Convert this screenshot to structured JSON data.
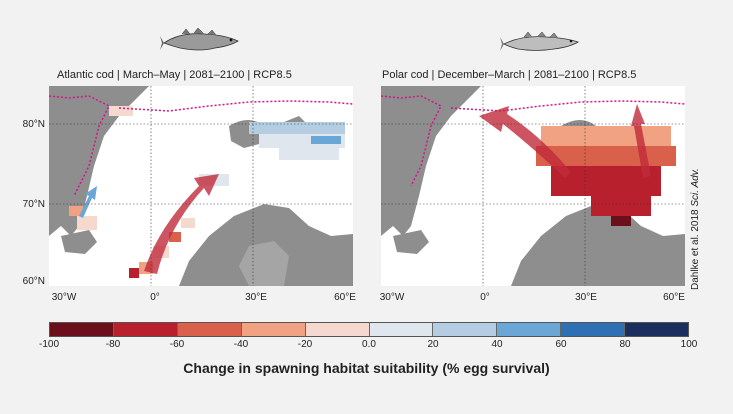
{
  "panels": [
    {
      "title": "Atlantic cod | March–May | 2081–2100 | RCP8.5",
      "fish": "atlantic-cod-fish-icon"
    },
    {
      "title": "Polar cod | December–March | 2081–2100 | RCP8.5",
      "fish": "polar-cod-fish-icon"
    }
  ],
  "lat_labels": [
    "80°N",
    "70°N",
    "60°N"
  ],
  "lon_labels": [
    "30°W",
    "0°",
    "30°E",
    "60°E"
  ],
  "credit": {
    "text": "Dahlke et al. 2018 ",
    "journal": "Sci. Adv."
  },
  "colorbar": {
    "title": "Change in spawning habitat suitability (% egg survival)",
    "ticks": [
      "-100",
      "-80",
      "-60",
      "-40",
      "-20",
      "0.0",
      "20",
      "40",
      "60",
      "80",
      "100"
    ],
    "colors": [
      "#6b0f1a",
      "#b8202e",
      "#d9604a",
      "#f0a283",
      "#f5d9cf",
      "#dfe6ee",
      "#b5cde2",
      "#6ba7d6",
      "#2f6fb3",
      "#1b2f5e"
    ]
  }
}
